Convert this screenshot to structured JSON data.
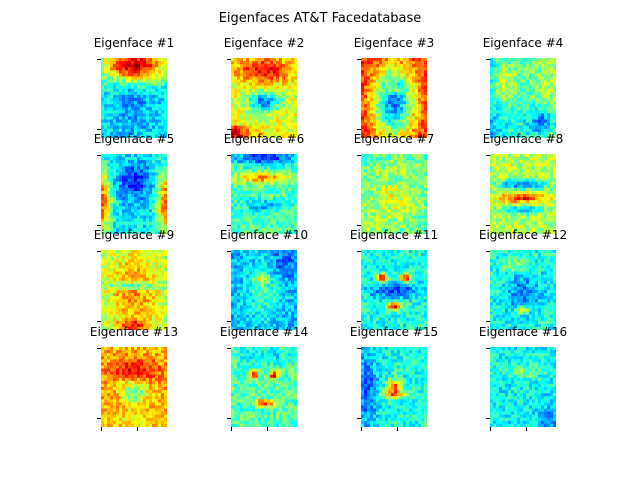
{
  "chart_data": {
    "type": "heatmap",
    "title": "Eigenfaces AT&T Facedatabase",
    "colormap": "jet",
    "grid": {
      "rows": 4,
      "cols": 4
    },
    "panels": [
      {
        "label": "Eigenface #1",
        "pattern": "cool-face-hot-hair"
      },
      {
        "label": "Eigenface #2",
        "pattern": "warm-face-cool-center"
      },
      {
        "label": "Eigenface #3",
        "pattern": "hot-background-cool-face"
      },
      {
        "label": "Eigenface #4",
        "pattern": "mixed-side-lighting"
      },
      {
        "label": "Eigenface #5",
        "pattern": "cool-face-warm-sides"
      },
      {
        "label": "Eigenface #6",
        "pattern": "dark-brow-band"
      },
      {
        "label": "Eigenface #7",
        "pattern": "soft-neutral"
      },
      {
        "label": "Eigenface #8",
        "pattern": "hot-eye-band"
      },
      {
        "label": "Eigenface #9",
        "pattern": "warm-oval"
      },
      {
        "label": "Eigenface #10",
        "pattern": "cool-blue-face"
      },
      {
        "label": "Eigenface #11",
        "pattern": "red-eyes-mouth"
      },
      {
        "label": "Eigenface #12",
        "pattern": "cool-textured"
      },
      {
        "label": "Eigenface #13",
        "pattern": "hot-warm-face"
      },
      {
        "label": "Eigenface #14",
        "pattern": "red-features"
      },
      {
        "label": "Eigenface #15",
        "pattern": "cool-edges-warm-spots"
      },
      {
        "label": "Eigenface #16",
        "pattern": "noisy-cool"
      }
    ]
  }
}
